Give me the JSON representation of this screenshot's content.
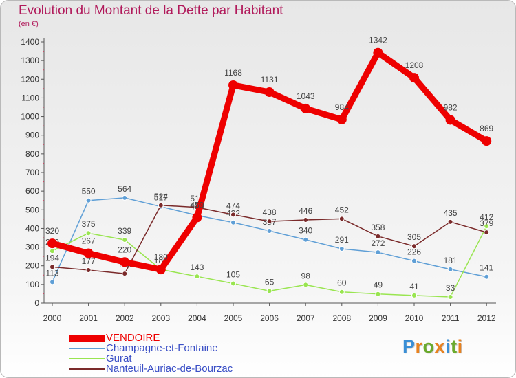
{
  "header": {
    "title": "Evolution du Montant de la Dette par Habitant",
    "subtitle": "(en €)"
  },
  "brand": {
    "logo_letters": [
      "P",
      "r",
      "o",
      "x",
      "i",
      "t",
      "i"
    ],
    "logo_colors": [
      "#3a8fd6",
      "#e8821f",
      "#6aaa2c",
      "#e8821f",
      "#3a8fd6",
      "#6aaa2c",
      "#e8821f"
    ]
  },
  "chart_data": {
    "type": "line",
    "title": "Evolution du Montant de la Dette par Habitant",
    "subtitle": "(en €)",
    "xlabel": "",
    "ylabel": "",
    "x": [
      "2000",
      "2001",
      "2002",
      "2003",
      "2004",
      "2005",
      "2006",
      "2007",
      "2008",
      "2009",
      "2010",
      "2011",
      "2012"
    ],
    "ylim": [
      0,
      1400
    ],
    "yticks": [
      0,
      100,
      200,
      300,
      400,
      500,
      600,
      700,
      800,
      900,
      1000,
      1100,
      1200,
      1300,
      1400
    ],
    "grid": false,
    "legend_position": "bottom-left",
    "series": [
      {
        "name": "VENDOIRE",
        "color": "#ee0000",
        "highlight": true,
        "values": [
          320,
          267,
          220,
          180,
          459,
          1168,
          1131,
          1043,
          984,
          1342,
          1208,
          982,
          869
        ]
      },
      {
        "name": "Champagne-et-Fontaine",
        "color": "#5f9fd6",
        "highlight": false,
        "values": [
          113,
          550,
          564,
          517,
          470,
          432,
          387,
          340,
          291,
          272,
          226,
          181,
          141
        ]
      },
      {
        "name": "Gurat",
        "color": "#99e550",
        "highlight": false,
        "values": [
          279,
          375,
          339,
          180,
          143,
          105,
          65,
          98,
          60,
          49,
          41,
          33,
          412
        ]
      },
      {
        "name": "Nanteuil-Auriac-de-Bourzac",
        "color": "#7a2a2a",
        "highlight": false,
        "values": [
          194,
          177,
          158,
          524,
          513,
          474,
          438,
          446,
          452,
          358,
          305,
          435,
          379
        ]
      }
    ]
  }
}
